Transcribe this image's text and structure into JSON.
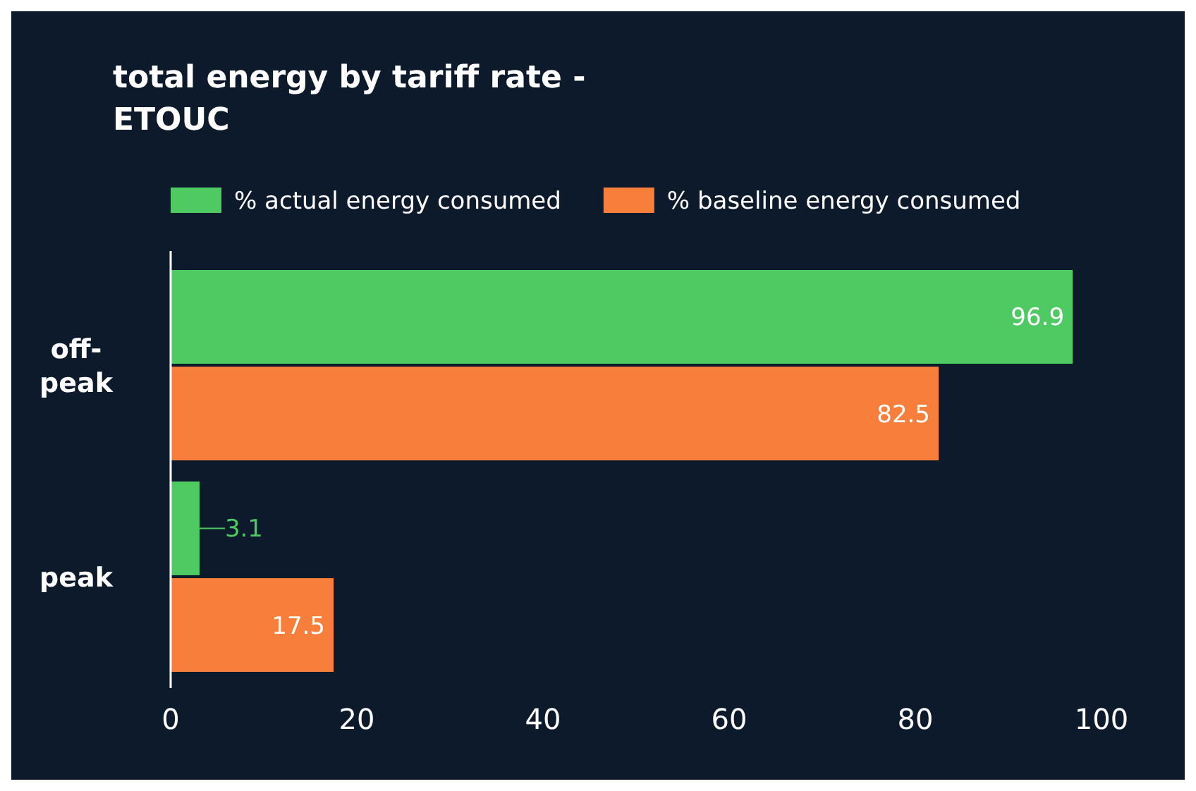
{
  "chart_data": {
    "type": "bar",
    "orientation": "horizontal",
    "title": "total energy by tariff rate - ETOUC",
    "categories": [
      "off-peak",
      "peak"
    ],
    "series": [
      {
        "name": "% actual energy consumed",
        "color": "#4fca62",
        "values": [
          96.9,
          3.1
        ]
      },
      {
        "name": "% baseline energy consumed",
        "color": "#f77e3b",
        "values": [
          82.5,
          17.5
        ]
      }
    ],
    "xlim": [
      0,
      100
    ],
    "xticks": [
      0,
      20,
      40,
      60,
      80,
      100
    ],
    "data_labels": true,
    "legend": "top left",
    "grid": false
  }
}
